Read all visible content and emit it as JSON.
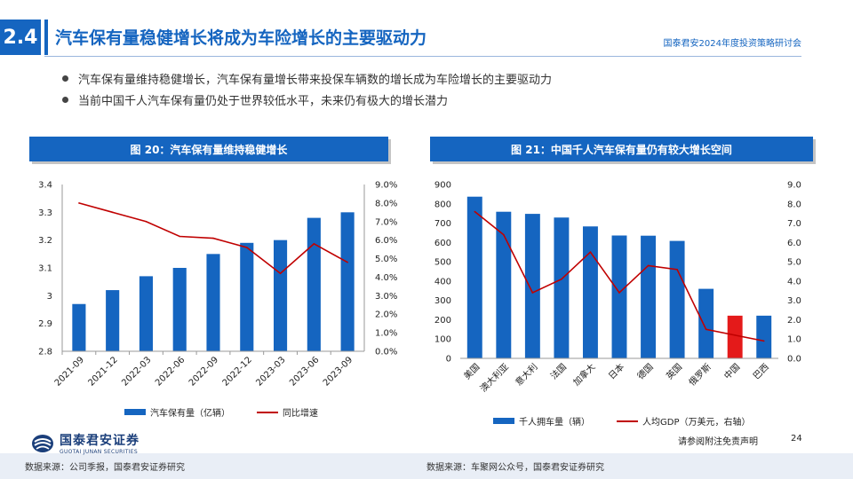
{
  "header": {
    "section_number": "2.4",
    "title": "汽车保有量稳健增长将成为车险增长的主要驱动力",
    "event_name": "国泰君安2024年度投资策略研讨会"
  },
  "bullets": [
    "汽车保有量维持稳健增长，汽车保有量增长带来投保车辆数的增长成为车险增长的主要驱动力",
    "当前中国千人汽车保有量仍处于世界较低水平，未来仍有极大的增长潜力"
  ],
  "footer": {
    "disclaimer": "请参阅附注免责声明",
    "page_number": "24",
    "logo_cn": "国泰君安证券",
    "logo_en": "GUOTAI JUNAN SECURITIES",
    "source_left": "数据来源：公司季报，国泰君安证券研究",
    "source_right": "数据来源：车聚网公众号，国泰君安证券研究"
  },
  "colors": {
    "accent": "#1565c0",
    "bar": "#1565c0",
    "line": "#c00000",
    "highlight_bar": "#e41a1a"
  },
  "chart_data": [
    {
      "type": "bar",
      "title": "图 20：汽车保有量维持稳健增长",
      "categories": [
        "2021-09",
        "2021-12",
        "2022-03",
        "2022-06",
        "2022-09",
        "2022-12",
        "2023-03",
        "2023-06",
        "2023-09"
      ],
      "series": [
        {
          "name": "汽车保有量（亿辆）",
          "type": "bar",
          "axis": "left",
          "values": [
            2.97,
            3.02,
            3.07,
            3.1,
            3.15,
            3.19,
            3.2,
            3.28,
            3.3
          ]
        },
        {
          "name": "同比增速",
          "type": "line",
          "axis": "right",
          "values": [
            0.08,
            0.075,
            0.07,
            0.062,
            0.061,
            0.056,
            0.042,
            0.058,
            0.048
          ]
        }
      ],
      "yleft": {
        "lim": [
          2.8,
          3.4
        ],
        "ticks": [
          "3.4",
          "3.3",
          "3.2",
          "3.1",
          "3",
          "2.9",
          "2.8"
        ]
      },
      "yright": {
        "lim": [
          0,
          0.09
        ],
        "ticks": [
          "9.0%",
          "8.0%",
          "7.0%",
          "6.0%",
          "5.0%",
          "4.0%",
          "3.0%",
          "2.0%",
          "1.0%",
          "0.0%"
        ]
      },
      "grid": false,
      "legend": "bottom"
    },
    {
      "type": "bar",
      "title": "图 21：中国千人汽车保有量仍有较大增长空间",
      "categories": [
        "美国",
        "澳大利亚",
        "意大利",
        "法国",
        "加拿大",
        "日本",
        "德国",
        "英国",
        "俄罗斯",
        "中国",
        "巴西"
      ],
      "highlight_category": "中国",
      "series": [
        {
          "name": "千人拥车量（辆）",
          "type": "bar",
          "axis": "left",
          "values": [
            837,
            759,
            748,
            729,
            683,
            636,
            635,
            608,
            360,
            221,
            221
          ]
        },
        {
          "name": "人均GDP（万美元，右轴）",
          "type": "line",
          "axis": "right",
          "values": [
            7.6,
            6.4,
            3.4,
            4.1,
            5.5,
            3.4,
            4.8,
            4.6,
            1.5,
            1.2,
            0.9
          ]
        }
      ],
      "yleft": {
        "lim": [
          0,
          900
        ],
        "ticks": [
          "900",
          "800",
          "700",
          "600",
          "500",
          "400",
          "300",
          "200",
          "100",
          "0"
        ]
      },
      "yright": {
        "lim": [
          0,
          9
        ],
        "ticks": [
          "9.0",
          "8.0",
          "7.0",
          "6.0",
          "5.0",
          "4.0",
          "3.0",
          "2.0",
          "1.0",
          "0.0"
        ]
      },
      "grid": false,
      "legend": "bottom"
    }
  ]
}
